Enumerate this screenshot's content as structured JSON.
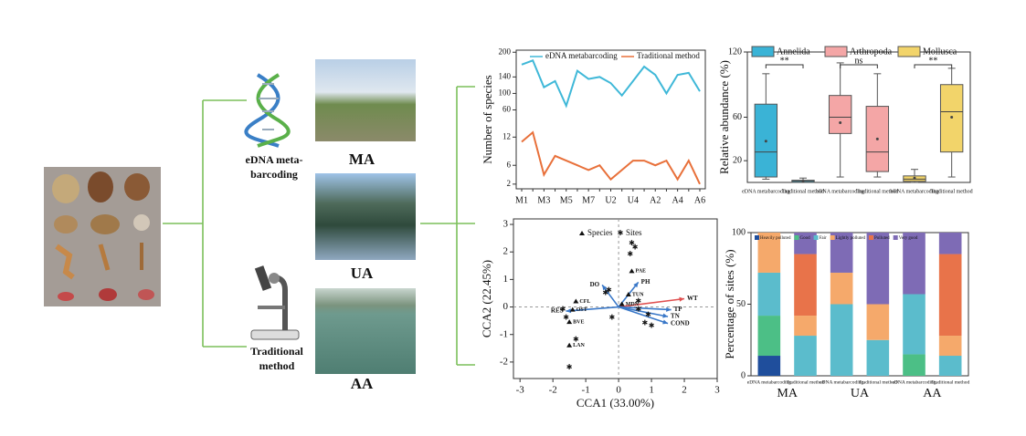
{
  "labels": {
    "edna_label": [
      "eDNA meta-",
      "barcoding"
    ],
    "traditional_label": [
      "Traditional",
      "method"
    ],
    "sites": [
      "MA",
      "UA",
      "AA"
    ]
  },
  "chart_data": [
    {
      "type": "line",
      "y_label": "Number of species",
      "categories": [
        "M1",
        null,
        "M3",
        null,
        "M5",
        null,
        "M7",
        null,
        "U2",
        null,
        "U4",
        null,
        "A2",
        null,
        "A4",
        null,
        "A6"
      ],
      "series": [
        {
          "name": "eDNA metabarcoding",
          "color": "#3fb8d8",
          "axis": "y2",
          "values": [
            170,
            180,
            115,
            130,
            70,
            155,
            135,
            140,
            125,
            95,
            130,
            165,
            145,
            100,
            145,
            150,
            105
          ]
        },
        {
          "name": "Traditional method",
          "color": "#e8703a",
          "values": [
            11,
            13,
            4,
            8,
            7,
            6,
            5,
            6,
            3,
            5,
            7,
            7,
            6,
            7,
            3,
            7,
            2
          ]
        }
      ],
      "ylim": [
        1,
        14
      ],
      "yticks": [
        2,
        6,
        12
      ],
      "y2lim": [
        50,
        205
      ],
      "y2ticks": [
        60,
        100,
        140,
        200
      ]
    },
    {
      "type": "box",
      "y_label": "Relative abundance (%)",
      "categories": [
        "eDNA metabarcoding",
        "Traditional method",
        "eDNA metabarcoding",
        "Traditional method",
        "eDNA metabarcoding",
        "Traditional method"
      ],
      "annotations": [
        "**",
        "ns",
        "**"
      ],
      "series": [
        {
          "name": "Annelida",
          "color": "#3ab3d6",
          "boxes": [
            {
              "min": 3,
              "q1": 5,
              "median": 28,
              "q3": 72,
              "max": 100,
              "mean": 38
            },
            {
              "min": 0,
              "q1": 0,
              "median": 1,
              "q3": 2,
              "max": 4,
              "mean": 1
            }
          ]
        },
        {
          "name": "Arthropoda",
          "color": "#f4a6a6",
          "boxes": [
            {
              "min": 5,
              "q1": 45,
              "median": 60,
              "q3": 80,
              "max": 110,
              "mean": 55
            },
            {
              "min": 5,
              "q1": 10,
              "median": 28,
              "q3": 70,
              "max": 100,
              "mean": 40
            }
          ]
        },
        {
          "name": "Mollusca",
          "color": "#f2d46a",
          "boxes": [
            {
              "min": 0,
              "q1": 1,
              "median": 3,
              "q3": 6,
              "max": 12,
              "mean": 4
            },
            {
              "min": 5,
              "q1": 28,
              "median": 65,
              "q3": 90,
              "max": 105,
              "mean": 60
            }
          ]
        }
      ],
      "ylim": [
        0,
        120
      ],
      "yticks": [
        20,
        60,
        120
      ]
    },
    {
      "type": "scatter",
      "x_label": "CCA1 (33.00%)",
      "y_label": "CCA2 (22.45%)",
      "series": [
        {
          "name": "Species",
          "color": "#111111",
          "points": [
            {
              "label": "PAE",
              "x": 0.4,
              "y": 1.3
            },
            {
              "label": "TUN",
              "x": 0.3,
              "y": 0.45
            },
            {
              "label": "MDN",
              "x": 0.1,
              "y": 0.1
            },
            {
              "label": "CFL",
              "x": -1.3,
              "y": 0.2
            },
            {
              "label": "OST",
              "x": -1.4,
              "y": -0.1
            },
            {
              "label": "BVE",
              "x": -1.5,
              "y": -0.55
            },
            {
              "label": "LAN",
              "x": -1.5,
              "y": -1.4
            }
          ]
        },
        {
          "name": "Sites",
          "color": "#e02020",
          "points": [
            {
              "x": -1.7,
              "y": -0.1
            },
            {
              "x": -1.6,
              "y": -0.4
            },
            {
              "x": -1.3,
              "y": -1.2
            },
            {
              "x": -1.5,
              "y": -2.2
            },
            {
              "x": 0.4,
              "y": 2.3
            },
            {
              "x": 0.5,
              "y": 2.15
            },
            {
              "x": 0.35,
              "y": 1.9
            },
            {
              "x": -0.3,
              "y": 0.6
            },
            {
              "x": -0.4,
              "y": 0.5
            },
            {
              "x": 0.6,
              "y": 0.2
            },
            {
              "x": 0.9,
              "y": -0.3
            },
            {
              "x": 0.8,
              "y": -0.6
            },
            {
              "x": 1.0,
              "y": -0.7
            },
            {
              "x": -0.2,
              "y": -0.4
            },
            {
              "x": 0.6,
              "y": -0.1
            }
          ]
        }
      ],
      "arrows": [
        {
          "label": "WT",
          "x": 2.0,
          "y": 0.3,
          "color": "#e05050"
        },
        {
          "label": "TP",
          "x": 1.6,
          "y": -0.1,
          "color": "#3a78c8"
        },
        {
          "label": "TN",
          "x": 1.5,
          "y": -0.35,
          "color": "#3a78c8"
        },
        {
          "label": "COND",
          "x": 1.5,
          "y": -0.6,
          "color": "#3a78c8"
        },
        {
          "label": "PH",
          "x": 0.6,
          "y": 0.9,
          "color": "#3a78c8"
        },
        {
          "label": "DO",
          "x": -0.5,
          "y": 0.8,
          "color": "#3a78c8"
        },
        {
          "label": "RES",
          "x": -1.6,
          "y": -0.15,
          "color": "#3a78c8"
        }
      ],
      "xlim": [
        -3.2,
        3
      ],
      "xticks": [
        -3,
        -2,
        -1,
        0,
        1,
        2,
        3
      ],
      "ylim": [
        -2.6,
        3.2
      ],
      "yticks": [
        -2,
        -1,
        0,
        1,
        2,
        3
      ]
    },
    {
      "type": "bar",
      "stacked": true,
      "y_label": "Percentage of sites (%)",
      "categories": [
        "eDNA metabarcoding",
        "Traditional method",
        "eDNA metabarcoding",
        "Traditional method",
        "eDNA metabarcoding",
        "Traditional method"
      ],
      "groups": [
        "MA",
        "UA",
        "AA"
      ],
      "series": [
        {
          "name": "Heavily polluted",
          "color": "#1f4e9c",
          "values": [
            14,
            0,
            0,
            0,
            0,
            0
          ]
        },
        {
          "name": "Good",
          "color": "#4cbf86",
          "values": [
            28,
            0,
            0,
            0,
            15,
            0
          ]
        },
        {
          "name": "Fair",
          "color": "#5bbccc",
          "values": [
            30,
            28,
            50,
            25,
            42,
            14
          ]
        },
        {
          "name": "Lightly polluted",
          "color": "#f5a96b",
          "values": [
            28,
            14,
            22,
            25,
            0,
            14
          ]
        },
        {
          "name": "Polluted",
          "color": "#e8734a",
          "values": [
            0,
            43,
            0,
            0,
            0,
            57
          ]
        },
        {
          "name": "Very good",
          "color": "#7e6bb5",
          "values": [
            0,
            15,
            28,
            50,
            43,
            15
          ]
        }
      ],
      "ylim": [
        0,
        100
      ],
      "yticks": [
        0,
        50,
        100
      ]
    }
  ]
}
